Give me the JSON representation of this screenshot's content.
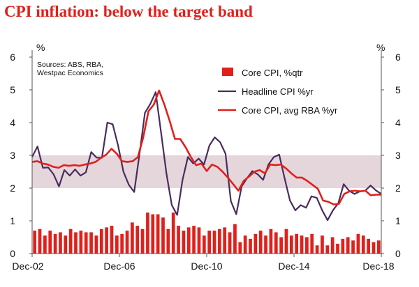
{
  "chart_data": {
    "type": "bar+line",
    "title": "CPI inflation: below the target band",
    "y_unit_left": "%",
    "y_unit_right": "%",
    "ylim": [
      0,
      6
    ],
    "yticks": [
      "0",
      "1",
      "2",
      "3",
      "4",
      "5",
      "6"
    ],
    "x_tick_labels": [
      "Dec-02",
      "Dec-06",
      "Dec-10",
      "Dec-14",
      "Dec-18"
    ],
    "x_range": [
      "Dec-2002",
      "Dec-2018"
    ],
    "target_band": [
      2,
      3
    ],
    "sources": [
      "Sources: ABS, RBA,",
      "Westpac Economics"
    ],
    "series": [
      {
        "name": "Core CPI, %qtr",
        "type": "bar",
        "color": "#e0201b",
        "values": [
          0.7,
          0.75,
          0.55,
          0.7,
          0.6,
          0.65,
          0.55,
          0.75,
          0.65,
          0.7,
          0.65,
          0.65,
          0.55,
          0.75,
          0.8,
          0.85,
          0.55,
          0.6,
          0.7,
          0.95,
          0.85,
          0.75,
          1.25,
          1.2,
          1.2,
          1.1,
          0.75,
          1.25,
          0.85,
          0.7,
          0.8,
          0.85,
          0.8,
          0.55,
          0.7,
          0.7,
          0.75,
          0.8,
          0.65,
          0.9,
          0.35,
          0.55,
          0.45,
          0.6,
          0.7,
          0.55,
          0.75,
          0.65,
          0.5,
          0.75,
          0.55,
          0.6,
          0.55,
          0.5,
          0.6,
          0.25,
          0.55,
          0.25,
          0.5,
          0.3,
          0.45,
          0.5,
          0.4,
          0.6,
          0.55,
          0.45,
          0.35,
          0.4
        ]
      },
      {
        "name": "Headline CPI %yr",
        "type": "line",
        "color": "#4a2c5c",
        "values": [
          2.95,
          3.27,
          2.62,
          2.63,
          2.42,
          2.05,
          2.55,
          2.38,
          2.57,
          2.38,
          2.48,
          3.1,
          2.93,
          2.93,
          4.0,
          3.95,
          3.3,
          2.5,
          2.1,
          1.88,
          3.05,
          4.3,
          4.57,
          4.93,
          3.7,
          2.45,
          1.48,
          1.18,
          2.25,
          2.95,
          2.75,
          2.9,
          2.72,
          3.3,
          3.55,
          3.4,
          3.05,
          1.6,
          1.2,
          2.05,
          2.3,
          2.52,
          2.42,
          2.25,
          2.72,
          2.95,
          3.02,
          2.3,
          1.62,
          1.32,
          1.48,
          1.4,
          1.75,
          1.7,
          1.32,
          1.02,
          1.32,
          1.54,
          2.12,
          1.92,
          1.82,
          1.9,
          1.92,
          2.08,
          1.93,
          1.82
        ]
      },
      {
        "name": "Core CPI, avg RBA %yr",
        "type": "line",
        "color": "#e0201b",
        "values": [
          2.8,
          2.82,
          2.75,
          2.72,
          2.65,
          2.62,
          2.7,
          2.68,
          2.7,
          2.68,
          2.72,
          2.75,
          2.8,
          2.92,
          3.02,
          3.2,
          3.05,
          2.82,
          2.8,
          2.82,
          2.95,
          3.55,
          4.35,
          4.55,
          4.98,
          4.55,
          4.05,
          3.5,
          3.5,
          3.25,
          2.95,
          2.7,
          2.75,
          2.52,
          2.72,
          2.65,
          2.5,
          2.32,
          2.12,
          1.92,
          2.22,
          2.35,
          2.5,
          2.55,
          2.45,
          2.72,
          2.7,
          2.72,
          2.6,
          2.45,
          2.32,
          2.32,
          2.22,
          2.1,
          1.98,
          1.62,
          1.58,
          1.5,
          1.52,
          1.82,
          1.9,
          1.92,
          1.9,
          1.92,
          1.78,
          1.8,
          1.8
        ]
      }
    ]
  },
  "colors": {
    "band": "#e5d6dc",
    "axis": "#555555",
    "title": "#e0201b"
  }
}
